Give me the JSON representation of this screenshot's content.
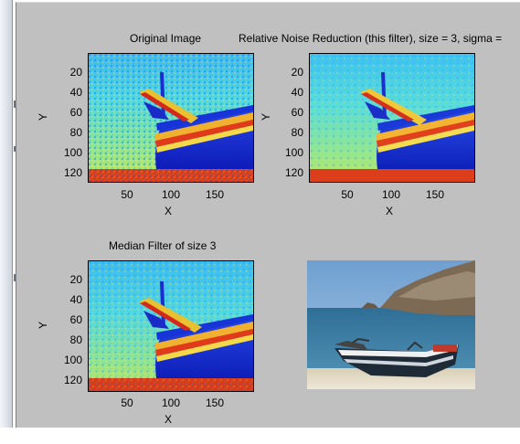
{
  "figure": {
    "plots": [
      {
        "id": "original",
        "title": "Original Image",
        "xlabel": "X",
        "ylabel": "Y",
        "xticks": [
          "50",
          "100",
          "150"
        ],
        "yticks": [
          "20",
          "40",
          "60",
          "80",
          "100",
          "120"
        ]
      },
      {
        "id": "relative-noise",
        "title": "Relative Noise Reduction (this filter), size = 3, sigma =",
        "xlabel": "X",
        "ylabel": "Y",
        "xticks": [
          "50",
          "100",
          "150"
        ],
        "yticks": [
          "20",
          "40",
          "60",
          "80",
          "100",
          "120"
        ]
      },
      {
        "id": "median",
        "title": "Median Filter of size 3",
        "xlabel": "X",
        "ylabel": "Y",
        "xticks": [
          "50",
          "100",
          "150"
        ],
        "yticks": [
          "20",
          "40",
          "60",
          "80",
          "100",
          "120"
        ]
      }
    ],
    "photo": {
      "description": "boat-on-beach-photo"
    }
  },
  "colors": {
    "panel": "#c0c0c0",
    "jet_blue": "#0a2dd8",
    "jet_cyan": "#2fd9f0",
    "jet_yellow": "#f2e23a",
    "jet_red": "#d81b12"
  }
}
